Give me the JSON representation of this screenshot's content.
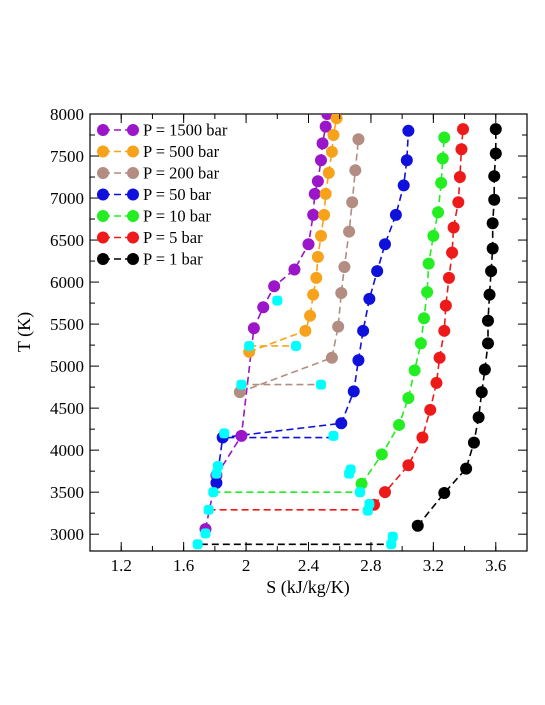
{
  "chart_data": {
    "type": "scatter",
    "xlabel": "S (kJ/kg/K)",
    "ylabel": "T (K)",
    "xlim": [
      1.0,
      3.8
    ],
    "ylim": [
      2800,
      8000
    ],
    "xticks": [
      "1.2",
      "1.6",
      "2",
      "2.4",
      "2.8",
      "3.2",
      "3.6"
    ],
    "xtick_values": [
      1.2,
      1.6,
      2.0,
      2.4,
      2.8,
      3.2,
      3.6
    ],
    "yticks": [
      "3000",
      "3500",
      "4000",
      "4500",
      "5000",
      "5500",
      "6000",
      "6500",
      "7000",
      "7500",
      "8000"
    ],
    "ytick_values": [
      3000,
      3500,
      4000,
      4500,
      5000,
      5500,
      6000,
      6500,
      7000,
      7500,
      8000
    ],
    "legend_position": "top-left",
    "grid": false,
    "series": [
      {
        "name": "P = 1500 bar",
        "color": "#9a16c8",
        "points": [
          [
            1.74,
            3060
          ],
          [
            1.81,
            3700
          ],
          [
            1.97,
            4170
          ],
          [
            2.05,
            5450
          ],
          [
            2.11,
            5700
          ],
          [
            2.18,
            5950
          ],
          [
            2.31,
            6150
          ],
          [
            2.4,
            6450
          ],
          [
            2.43,
            6800
          ],
          [
            2.44,
            7050
          ],
          [
            2.46,
            7200
          ],
          [
            2.48,
            7450
          ],
          [
            2.49,
            7650
          ],
          [
            2.51,
            7850
          ],
          [
            2.52,
            8000
          ]
        ]
      },
      {
        "name": "P = 500 bar",
        "color": "#f7a21b",
        "points": [
          [
            2.02,
            5170
          ],
          [
            2.38,
            5420
          ],
          [
            2.41,
            5600
          ],
          [
            2.43,
            5850
          ],
          [
            2.45,
            6050
          ],
          [
            2.46,
            6300
          ],
          [
            2.48,
            6550
          ],
          [
            2.5,
            6800
          ],
          [
            2.51,
            7050
          ],
          [
            2.53,
            7300
          ],
          [
            2.55,
            7550
          ],
          [
            2.56,
            7750
          ],
          [
            2.58,
            7950
          ]
        ]
      },
      {
        "name": "P = 200 bar",
        "color": "#b38c82",
        "points": [
          [
            1.96,
            4690
          ],
          [
            2.55,
            5100
          ],
          [
            2.59,
            5470
          ],
          [
            2.61,
            5870
          ],
          [
            2.63,
            6180
          ],
          [
            2.66,
            6600
          ],
          [
            2.68,
            6950
          ],
          [
            2.7,
            7330
          ],
          [
            2.72,
            7700
          ]
        ]
      },
      {
        "name": "P = 50 bar",
        "color": "#1010dd",
        "points": [
          [
            1.81,
            3610
          ],
          [
            1.85,
            4150
          ],
          [
            2.61,
            4320
          ],
          [
            2.69,
            4700
          ],
          [
            2.72,
            5070
          ],
          [
            2.75,
            5420
          ],
          [
            2.79,
            5800
          ],
          [
            2.84,
            6130
          ],
          [
            2.89,
            6450
          ],
          [
            2.96,
            6800
          ],
          [
            3.01,
            7150
          ],
          [
            3.03,
            7450
          ],
          [
            3.04,
            7800
          ]
        ]
      },
      {
        "name": "P = 10 bar",
        "color": "#22ee22",
        "points": [
          [
            2.74,
            3600
          ],
          [
            2.87,
            3950
          ],
          [
            2.98,
            4300
          ],
          [
            3.04,
            4620
          ],
          [
            3.08,
            4950
          ],
          [
            3.12,
            5270
          ],
          [
            3.14,
            5570
          ],
          [
            3.16,
            5880
          ],
          [
            3.17,
            6220
          ],
          [
            3.2,
            6550
          ],
          [
            3.23,
            6830
          ],
          [
            3.25,
            7180
          ],
          [
            3.26,
            7470
          ],
          [
            3.27,
            7720
          ]
        ]
      },
      {
        "name": "P = 5 bar",
        "color": "#ee1a1a",
        "points": [
          [
            2.82,
            3350
          ],
          [
            2.89,
            3500
          ],
          [
            3.04,
            3820
          ],
          [
            3.13,
            4150
          ],
          [
            3.18,
            4480
          ],
          [
            3.22,
            4800
          ],
          [
            3.24,
            5100
          ],
          [
            3.27,
            5420
          ],
          [
            3.28,
            5720
          ],
          [
            3.3,
            6050
          ],
          [
            3.32,
            6350
          ],
          [
            3.33,
            6650
          ],
          [
            3.36,
            6950
          ],
          [
            3.37,
            7250
          ],
          [
            3.38,
            7580
          ],
          [
            3.39,
            7820
          ]
        ]
      },
      {
        "name": "P = 1 bar",
        "color": "#000000",
        "points": [
          [
            3.1,
            3100
          ],
          [
            3.27,
            3490
          ],
          [
            3.41,
            3780
          ],
          [
            3.46,
            4090
          ],
          [
            3.49,
            4390
          ],
          [
            3.51,
            4690
          ],
          [
            3.53,
            4960
          ],
          [
            3.55,
            5270
          ],
          [
            3.55,
            5540
          ],
          [
            3.56,
            5850
          ],
          [
            3.57,
            6130
          ],
          [
            3.58,
            6400
          ],
          [
            3.58,
            6700
          ],
          [
            3.59,
            6980
          ],
          [
            3.59,
            7260
          ],
          [
            3.6,
            7530
          ],
          [
            3.6,
            7820
          ]
        ]
      }
    ],
    "transition_lines": [
      {
        "color": "#000000",
        "y": 2880,
        "x": [
          1.71,
          2.93
        ]
      },
      {
        "color": "#ee1a1a",
        "y": 3290,
        "x": [
          1.76,
          2.8
        ]
      },
      {
        "color": "#22ee22",
        "y": 3500,
        "x": [
          1.79,
          2.74
        ]
      },
      {
        "color": "#1010dd",
        "y": 4150,
        "x": [
          1.88,
          2.59
        ]
      },
      {
        "color": "#b38c82",
        "y": 4780,
        "x": [
          1.97,
          2.48
        ]
      },
      {
        "color": "#f7a21b",
        "y": 5240,
        "x": [
          2.02,
          2.32
        ]
      }
    ],
    "transition_marker_color": "#00ffff",
    "transition_points": [
      [
        1.69,
        2880
      ],
      [
        1.74,
        3010
      ],
      [
        1.76,
        3290
      ],
      [
        1.79,
        3500
      ],
      [
        1.81,
        3720
      ],
      [
        1.82,
        3810
      ],
      [
        1.86,
        4200
      ],
      [
        1.97,
        4780
      ],
      [
        2.02,
        5240
      ],
      [
        2.2,
        5780
      ],
      [
        2.32,
        5240
      ],
      [
        2.48,
        4780
      ],
      [
        2.56,
        4170
      ],
      [
        2.66,
        3720
      ],
      [
        2.67,
        3770
      ],
      [
        2.73,
        3500
      ],
      [
        2.78,
        3280
      ],
      [
        2.79,
        3360
      ],
      [
        2.93,
        2880
      ],
      [
        2.94,
        2970
      ]
    ]
  }
}
